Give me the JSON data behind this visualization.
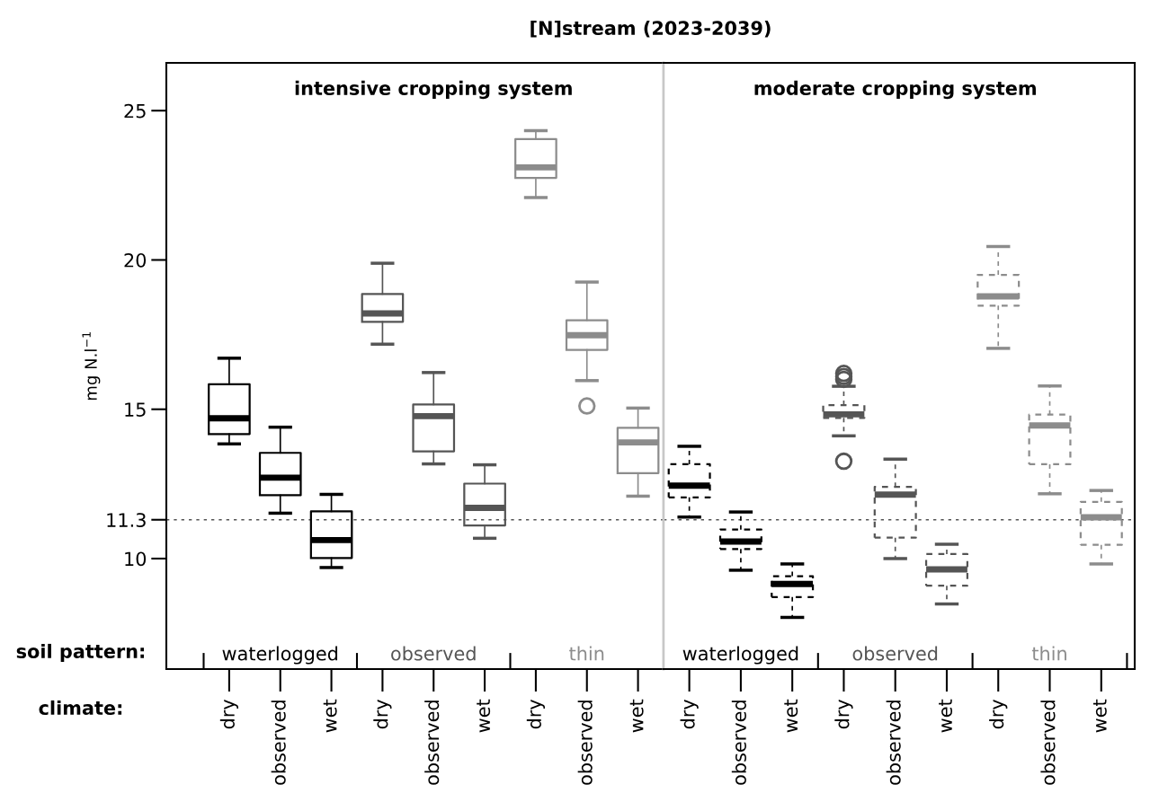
{
  "chart_data": [
    {
      "type": "box",
      "title": "[N]stream (2023-2039)",
      "subtitle": "intensive cropping system",
      "ylabel": "mg N.l$^{−1}$",
      "categories": [
        "dry",
        "observed",
        "wet",
        "dry",
        "observed",
        "wet",
        "dry",
        "observed",
        "wet"
      ],
      "line_style": "solid",
      "colors": [
        "#000000",
        "#000000",
        "#000000",
        "#555555",
        "#555555",
        "#555555",
        "#8c8c8c",
        "#8c8c8c",
        "#8c8c8c"
      ],
      "boxes": [
        {
          "low": 13.84,
          "q1": 14.17,
          "median": 14.7,
          "q3": 15.84,
          "high": 16.71
        },
        {
          "low": 11.52,
          "q1": 12.12,
          "median": 12.71,
          "q3": 13.54,
          "high": 14.4
        },
        {
          "low": 9.7,
          "q1": 10.02,
          "median": 10.62,
          "q3": 11.58,
          "high": 12.15
        },
        {
          "low": 17.18,
          "q1": 17.93,
          "median": 18.21,
          "q3": 18.86,
          "high": 19.89
        },
        {
          "low": 13.17,
          "q1": 13.59,
          "median": 14.77,
          "q3": 15.16,
          "high": 16.23
        },
        {
          "low": 10.68,
          "q1": 11.11,
          "median": 11.7,
          "q3": 12.51,
          "high": 13.14
        },
        {
          "low": 22.09,
          "q1": 22.75,
          "median": 23.1,
          "q3": 24.05,
          "high": 24.33
        },
        {
          "low": 15.96,
          "q1": 16.99,
          "median": 17.48,
          "q3": 17.98,
          "high": 19.26,
          "outliers": [
            15.11
          ]
        },
        {
          "low": 12.09,
          "q1": 12.86,
          "median": 13.89,
          "q3": 14.38,
          "high": 15.04
        }
      ],
      "ylim": [
        6.3,
        26.6
      ],
      "yticks": [
        10,
        {
          "value": 11.3,
          "label": "11.3"
        },
        15,
        20,
        25
      ],
      "ref_lines": [
        {
          "axis": "y",
          "value": 11.3,
          "color": "#555555",
          "line_style": "dotted"
        }
      ],
      "annotations": [
        "soil pattern:",
        "climate:",
        "waterlogged",
        "observed",
        "thin"
      ],
      "grid": false,
      "legend": false
    },
    {
      "type": "box",
      "subtitle": "moderate cropping system",
      "categories": [
        "dry",
        "observed",
        "wet",
        "dry",
        "observed",
        "wet",
        "dry",
        "observed",
        "wet"
      ],
      "line_style": "dashed",
      "colors": [
        "#000000",
        "#000000",
        "#000000",
        "#555555",
        "#555555",
        "#555555",
        "#8c8c8c",
        "#8c8c8c",
        "#8c8c8c"
      ],
      "boxes": [
        {
          "low": 11.39,
          "q1": 12.05,
          "median": 12.44,
          "q3": 13.16,
          "high": 13.76
        },
        {
          "low": 9.61,
          "q1": 10.32,
          "median": 10.57,
          "q3": 10.97,
          "high": 11.56
        },
        {
          "low": 8.03,
          "q1": 8.71,
          "median": 9.15,
          "q3": 9.41,
          "high": 9.82
        },
        {
          "low": 14.11,
          "q1": 14.71,
          "median": 14.83,
          "q3": 15.14,
          "high": 15.77,
          "outliers": [
            13.26,
            16.0,
            16.1,
            16.2
          ]
        },
        {
          "low": 10.0,
          "q1": 10.7,
          "median": 12.14,
          "q3": 12.4,
          "high": 13.33
        },
        {
          "low": 8.48,
          "q1": 9.09,
          "median": 9.64,
          "q3": 10.15,
          "high": 10.48
        },
        {
          "low": 17.04,
          "q1": 18.47,
          "median": 18.78,
          "q3": 19.5,
          "high": 20.45
        },
        {
          "low": 12.17,
          "q1": 13.16,
          "median": 14.46,
          "q3": 14.82,
          "high": 15.78
        },
        {
          "low": 9.82,
          "q1": 10.46,
          "median": 11.38,
          "q3": 11.9,
          "high": 12.28
        }
      ],
      "ylim": [
        6.3,
        26.6
      ],
      "ref_lines": [
        {
          "axis": "y",
          "value": 11.3,
          "color": "#555555",
          "line_style": "dotted"
        }
      ],
      "annotations": [
        "waterlogged",
        "observed",
        "thin"
      ],
      "tick_labels": "x",
      "grid": false,
      "legend": false
    }
  ]
}
